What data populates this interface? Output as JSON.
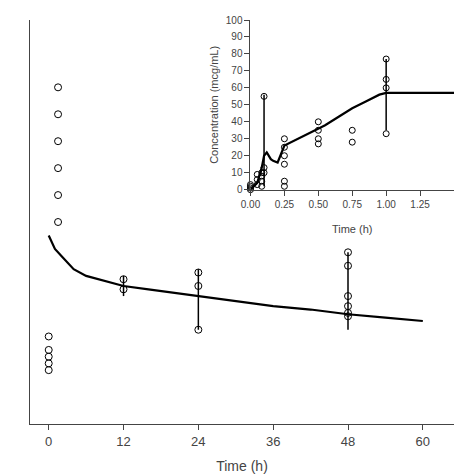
{
  "chart_data": [
    {
      "type": "line",
      "xlabel": "Time (h)",
      "xlim": [
        -3,
        65
      ],
      "ylim": [
        -8,
        52
      ],
      "xticks": [
        0,
        12,
        24,
        36,
        48,
        60
      ],
      "yticks": [],
      "tick_labels": "x",
      "grid": false,
      "series": [
        {
          "type": "line",
          "color": "black",
          "x": [
            0,
            0.5,
            1,
            2,
            4,
            6,
            8,
            10,
            12,
            16,
            20,
            24,
            30,
            36,
            42,
            48,
            54,
            60
          ],
          "values": [
            20,
            19,
            18,
            17,
            15,
            14,
            13.5,
            13,
            12.5,
            12,
            11.5,
            11,
            10.2,
            9.5,
            9.0,
            8.3,
            7.8,
            7.3
          ]
        },
        {
          "type": "errorbar",
          "color": "black",
          "x": [
            12,
            24,
            48
          ],
          "values": [
            12.5,
            12.5,
            10.0
          ],
          "err_minus": [
            1.5,
            6.5,
            4.0
          ],
          "err_plus": [
            1.5,
            2.5,
            7.5
          ]
        },
        {
          "type": "scatter",
          "marker": "open_circle",
          "color": "black",
          "x": [
            0,
            0,
            0,
            0,
            0,
            1.5,
            1.5,
            1.5,
            1.5,
            1.5,
            1.5,
            12,
            12,
            24,
            24,
            24,
            48,
            48,
            48,
            48,
            48,
            48
          ],
          "values": [
            0,
            1,
            2,
            3,
            5,
            42,
            38,
            34,
            30,
            26,
            22,
            13.5,
            12.0,
            14.5,
            12.5,
            6.0,
            17.5,
            15.5,
            11.0,
            9.5,
            8.5,
            8.0
          ]
        }
      ]
    },
    {
      "type": "line",
      "xlabel": "Time (h)",
      "ylabel": "Concentration (mcg/mL)",
      "xlim": [
        0,
        1.5
      ],
      "ylim": [
        0,
        100
      ],
      "xticks": [
        {
          "value": 0,
          "label": "0.00"
        },
        0.25,
        {
          "value": 0.5,
          "label": "0.50"
        },
        0.75,
        {
          "value": 1.0,
          "label": "1.00"
        },
        1.25
      ],
      "yticks": [
        0,
        10,
        20,
        30,
        40,
        50,
        60,
        70,
        80,
        90,
        100
      ],
      "grid": false,
      "series": [
        {
          "type": "line",
          "color": "black",
          "x": [
            0,
            0.05,
            0.083,
            0.1,
            0.12,
            0.133,
            0.15,
            0.167,
            0.2,
            0.25,
            0.35,
            0.45,
            0.55,
            0.65,
            0.75,
            0.85,
            0.95,
            1.0,
            1.1,
            1.25,
            1.5
          ],
          "values": [
            0,
            4,
            13,
            20,
            22,
            20,
            18,
            17,
            16,
            26,
            30,
            34,
            38,
            43,
            48,
            52,
            56,
            57,
            57,
            57,
            57
          ]
        },
        {
          "type": "errorbar",
          "color": "black",
          "x": [
            0.1,
            1.0
          ],
          "values": [
            20,
            57
          ],
          "err_minus": [
            18,
            22
          ],
          "err_plus": [
            36,
            20
          ]
        },
        {
          "type": "scatter",
          "marker": "open_circle",
          "color": "black",
          "x": [
            0,
            0,
            0,
            0,
            0.05,
            0.05,
            0.05,
            0.083,
            0.083,
            0.083,
            0.083,
            0.1,
            0.1,
            0.1,
            0.25,
            0.25,
            0.25,
            0.25,
            0.25,
            0.25,
            0.5,
            0.5,
            0.5,
            0.5,
            0.75,
            0.75,
            1.0,
            1.0,
            1.0,
            1.0
          ],
          "values": [
            0,
            1,
            2,
            3,
            9,
            6,
            3,
            10,
            8,
            5,
            2,
            55,
            13,
            10,
            30,
            25,
            20,
            15,
            5,
            2,
            40,
            35,
            30,
            27,
            35,
            28,
            77,
            65,
            60,
            33
          ]
        }
      ]
    }
  ]
}
